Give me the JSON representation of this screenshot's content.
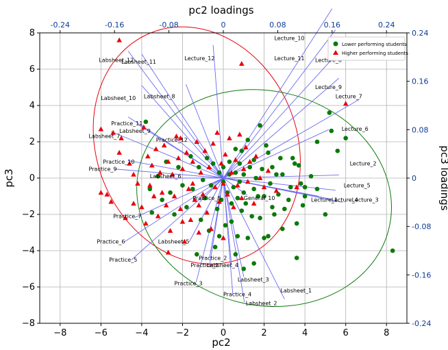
{
  "chart_data": {
    "type": "scatter",
    "title": "",
    "xlabel": "pc2",
    "ylabel": "pc3",
    "top_axis_label": "pc2 loadings",
    "right_axis_label": "pc3 loadings",
    "xlim": [
      -9,
      9
    ],
    "ylim": [
      -8,
      8
    ],
    "x_ticks": [
      "−8",
      "−6",
      "−4",
      "−2",
      "0",
      "2",
      "4",
      "6",
      "8"
    ],
    "y_ticks": [
      "−8",
      "−6",
      "−4",
      "−2",
      "0",
      "2",
      "4",
      "6",
      "8"
    ],
    "x_tick_values": [
      -8,
      -6,
      -4,
      -2,
      0,
      2,
      4,
      6,
      8
    ],
    "y_tick_values": [
      -8,
      -6,
      -4,
      -2,
      0,
      2,
      4,
      6,
      8
    ],
    "top_ticks": [
      "-0.24",
      "-0.16",
      "-0.08",
      "0",
      "0.08",
      "0.16",
      "0.24"
    ],
    "top_tick_values": [
      -0.24,
      -0.16,
      -0.08,
      0,
      0.08,
      0.16,
      0.24
    ],
    "right_ticks": [
      "0.24",
      "0.16",
      "0.08",
      "0",
      "-0.08",
      "-0.16",
      "-0.24"
    ],
    "right_tick_values": [
      0.24,
      0.16,
      0.08,
      0,
      -0.08,
      -0.16,
      -0.24
    ],
    "loading_scale_factor": 33.3333,
    "grid": true,
    "legend_position": "top-right",
    "colors": {
      "lower": "#0a7a0a",
      "higher": "#e8000b",
      "vectors": "#6a6af0",
      "loading_axis": "#0b3d91"
    },
    "series": [
      {
        "name": "Lower performing students",
        "marker": "circle",
        "points": [
          [
            8.3,
            -4.0
          ],
          [
            6.0,
            2.2
          ],
          [
            5.6,
            1.5
          ],
          [
            5.3,
            2.6
          ],
          [
            5.2,
            3.6
          ],
          [
            5.0,
            -2.0
          ],
          [
            4.6,
            2.0
          ],
          [
            4.3,
            0.1
          ],
          [
            4.0,
            -0.5
          ],
          [
            4.0,
            -1.0
          ],
          [
            3.9,
            -1.5
          ],
          [
            3.8,
            -0.3
          ],
          [
            3.6,
            -4.4
          ],
          [
            3.6,
            -2.5
          ],
          [
            3.5,
            0.8
          ],
          [
            3.7,
            0.7
          ],
          [
            3.3,
            -0.5
          ],
          [
            3.2,
            -1.2
          ],
          [
            3.0,
            -1.7
          ],
          [
            2.9,
            0.2
          ],
          [
            2.9,
            -2.8
          ],
          [
            2.8,
            1.1
          ],
          [
            2.7,
            -0.9
          ],
          [
            2.6,
            0.2
          ],
          [
            2.5,
            -2.0
          ],
          [
            2.4,
            -1.6
          ],
          [
            2.4,
            0.6
          ],
          [
            2.3,
            -0.3
          ],
          [
            2.2,
            -3.2
          ],
          [
            2.2,
            1.4
          ],
          [
            2.1,
            1.8
          ],
          [
            2.0,
            -1.0
          ],
          [
            2.0,
            -3.3
          ],
          [
            1.9,
            0.5
          ],
          [
            1.8,
            -2.2
          ],
          [
            1.8,
            2.9
          ],
          [
            1.7,
            -1.0
          ],
          [
            1.6,
            0.0
          ],
          [
            1.5,
            -0.6
          ],
          [
            1.5,
            1.0
          ],
          [
            1.4,
            -2.1
          ],
          [
            1.3,
            0.6
          ],
          [
            1.2,
            -3.3
          ],
          [
            1.2,
            2.1
          ],
          [
            1.1,
            -1.4
          ],
          [
            1.0,
            0.2
          ],
          [
            1.0,
            -0.8
          ],
          [
            0.9,
            1.5
          ],
          [
            0.9,
            -1.8
          ],
          [
            0.8,
            -0.2
          ],
          [
            0.8,
            0.8
          ],
          [
            0.7,
            -3.2
          ],
          [
            0.7,
            -1.1
          ],
          [
            0.6,
            0.3
          ],
          [
            0.6,
            1.6
          ],
          [
            0.5,
            -0.5
          ],
          [
            0.4,
            -2.4
          ],
          [
            0.4,
            -1.4
          ],
          [
            0.3,
            0.2
          ],
          [
            0.3,
            0.9
          ],
          [
            0.2,
            -0.8
          ],
          [
            0.1,
            -2.6
          ],
          [
            0.0,
            0.6
          ],
          [
            0.0,
            -0.2
          ],
          [
            -0.1,
            -1.2
          ],
          [
            -0.2,
            0.3
          ],
          [
            -0.3,
            -1.7
          ],
          [
            -0.4,
            -3.8
          ],
          [
            -0.5,
            0.8
          ],
          [
            -0.6,
            -0.4
          ],
          [
            -0.7,
            -2.9
          ],
          [
            -0.8,
            1.1
          ],
          [
            -0.9,
            -1.1
          ],
          [
            -1.0,
            -0.1
          ],
          [
            -1.1,
            -2.3
          ],
          [
            -1.2,
            0.6
          ],
          [
            -1.3,
            -4.2
          ],
          [
            -1.5,
            -0.6
          ],
          [
            -1.6,
            1.2
          ],
          [
            -1.8,
            -1.6
          ],
          [
            -2.0,
            -0.4
          ],
          [
            -2.2,
            0.6
          ],
          [
            -2.4,
            -2.0
          ],
          [
            -2.6,
            -0.8
          ],
          [
            -2.8,
            0.9
          ],
          [
            -3.0,
            -1.2
          ],
          [
            -3.2,
            0.1
          ],
          [
            -3.5,
            -1.9
          ],
          [
            -3.8,
            3.1
          ],
          [
            -3.6,
            -0.6
          ],
          [
            1.0,
            -5.0
          ],
          [
            0.6,
            -4.2
          ],
          [
            1.5,
            -4.7
          ],
          [
            -0.2,
            -3.2
          ],
          [
            4.6,
            -0.6
          ],
          [
            3.4,
            1.1
          ]
        ]
      },
      {
        "name": "Higher performing students",
        "marker": "triangle",
        "points": [
          [
            -5.1,
            7.6
          ],
          [
            0.9,
            6.3
          ],
          [
            6.0,
            4.1
          ],
          [
            -6.0,
            2.7
          ],
          [
            -5.4,
            2.5
          ],
          [
            -5.0,
            2.2
          ],
          [
            -5.1,
            1.4
          ],
          [
            -4.6,
            0.8
          ],
          [
            -4.4,
            0.2
          ],
          [
            -4.2,
            -0.3
          ],
          [
            -3.9,
            2.8
          ],
          [
            -3.7,
            1.2
          ],
          [
            -3.6,
            -0.4
          ],
          [
            -3.5,
            0.7
          ],
          [
            -3.4,
            -1.0
          ],
          [
            -3.3,
            1.6
          ],
          [
            -3.2,
            -2.1
          ],
          [
            -3.1,
            0.3
          ],
          [
            -3.0,
            -0.8
          ],
          [
            -2.9,
            1.8
          ],
          [
            -2.8,
            -1.5
          ],
          [
            -2.7,
            0.9
          ],
          [
            -2.6,
            -2.9
          ],
          [
            -2.5,
            0.2
          ],
          [
            -2.4,
            -1.0
          ],
          [
            -2.3,
            2.3
          ],
          [
            -2.2,
            1.1
          ],
          [
            -2.1,
            -1.7
          ],
          [
            -2.0,
            0.5
          ],
          [
            -1.9,
            -3.5
          ],
          [
            -1.8,
            1.4
          ],
          [
            -1.7,
            -0.6
          ],
          [
            -1.6,
            -2.3
          ],
          [
            -1.5,
            0.9
          ],
          [
            -1.4,
            -1.2
          ],
          [
            -1.3,
            2.0
          ],
          [
            -1.2,
            -3.0
          ],
          [
            -1.1,
            0.3
          ],
          [
            -1.0,
            -0.9
          ],
          [
            -0.9,
            1.5
          ],
          [
            -0.8,
            -1.9
          ],
          [
            -0.7,
            0.6
          ],
          [
            -0.6,
            -2.8
          ],
          [
            -0.5,
            1.9
          ],
          [
            -0.4,
            -0.5
          ],
          [
            -0.3,
            2.5
          ],
          [
            -0.2,
            -1.3
          ],
          [
            -0.1,
            0.8
          ],
          [
            0.0,
            -0.3
          ],
          [
            0.1,
            1.3
          ],
          [
            0.2,
            -0.9
          ],
          [
            0.3,
            2.2
          ],
          [
            0.4,
            0.3
          ],
          [
            0.5,
            -1.6
          ],
          [
            0.6,
            1.0
          ],
          [
            0.7,
            -0.4
          ],
          [
            0.8,
            2.4
          ],
          [
            0.9,
            -1.1
          ],
          [
            1.0,
            0.5
          ],
          [
            1.1,
            1.7
          ],
          [
            1.2,
            -0.2
          ],
          [
            1.3,
            0.9
          ],
          [
            1.5,
            -1.4
          ],
          [
            1.6,
            1.2
          ],
          [
            1.8,
            0.0
          ],
          [
            2.0,
            -0.5
          ],
          [
            2.2,
            0.4
          ],
          [
            2.6,
            -0.7
          ],
          [
            3.6,
            -0.5
          ],
          [
            -6.0,
            -0.8
          ],
          [
            -5.7,
            -0.9
          ],
          [
            -5.5,
            -1.3
          ],
          [
            -4.8,
            -2.2
          ],
          [
            -4.4,
            -1.4
          ],
          [
            -4.0,
            -1.6
          ],
          [
            -3.8,
            -2.5
          ],
          [
            -2.7,
            -4.1
          ],
          [
            -2.0,
            -2.4
          ],
          [
            -1.2,
            -1.5
          ],
          [
            0.0,
            -3.3
          ],
          [
            -1.5,
            -0.3
          ],
          [
            -2.1,
            2.2
          ]
        ]
      }
    ],
    "loadings": [
      {
        "name": "Lecture_10",
        "pc2": 0.16,
        "pc3": 0.28
      },
      {
        "name": "Lecture_11",
        "pc2": 0.165,
        "pc3": 0.245
      },
      {
        "name": "Lecture_8",
        "pc2": 0.175,
        "pc3": 0.215
      },
      {
        "name": "Lecture_9",
        "pc2": 0.17,
        "pc3": 0.165
      },
      {
        "name": "Lecture_7",
        "pc2": 0.2,
        "pc3": 0.13
      },
      {
        "name": "Lecture_6",
        "pc2": 0.155,
        "pc3": 0.08
      },
      {
        "name": "Lecture_2",
        "pc2": 0.17,
        "pc3": 0.005
      },
      {
        "name": "Lecture_5",
        "pc2": 0.165,
        "pc3": -0.02
      },
      {
        "name": "Lecture_3",
        "pc2": 0.175,
        "pc3": -0.04
      },
      {
        "name": "Lecture_4",
        "pc2": 0.16,
        "pc3": -0.035
      },
      {
        "name": "Lecture_1",
        "pc2": 0.14,
        "pc3": -0.03
      },
      {
        "name": "General_10",
        "pc2": 0.035,
        "pc3": -0.028
      },
      {
        "name": "Lecture_12",
        "pc2": -0.015,
        "pc3": 0.22
      },
      {
        "name": "Labsheet_12",
        "pc2": -0.14,
        "pc3": 0.21
      },
      {
        "name": "Labsheet_11",
        "pc2": -0.12,
        "pc3": 0.205
      },
      {
        "name": "Labsheet_8",
        "pc2": -0.055,
        "pc3": 0.155
      },
      {
        "name": "Labsheet_10",
        "pc2": -0.12,
        "pc3": 0.153
      },
      {
        "name": "Practice_11",
        "pc2": -0.14,
        "pc3": 0.101
      },
      {
        "name": "Labsheet_9",
        "pc2": -0.125,
        "pc3": 0.088
      },
      {
        "name": "Practice_12",
        "pc2": -0.07,
        "pc3": 0.066
      },
      {
        "name": "Labsheet_7",
        "pc2": -0.165,
        "pc3": 0.077
      },
      {
        "name": "Practice_10",
        "pc2": -0.14,
        "pc3": 0.029
      },
      {
        "name": "Practice_9",
        "pc2": -0.16,
        "pc3": 0.015
      },
      {
        "name": "Labsheet_6",
        "pc2": -0.085,
        "pc3": -0.0
      },
      {
        "name": "Labsheet_5",
        "pc2": -0.02,
        "pc3": -0.012
      },
      {
        "name": "Practice_8",
        "pc2": -0.035,
        "pc3": -0.04
      },
      {
        "name": "Practice_7",
        "pc2": -0.13,
        "pc3": -0.065
      },
      {
        "name": "Practice_6",
        "pc2": -0.145,
        "pc3": -0.105
      },
      {
        "name": "Practice_5",
        "pc2": -0.135,
        "pc3": -0.135
      },
      {
        "name": "Labsheet_5b",
        "pc2": -0.05,
        "pc3": -0.105
      },
      {
        "name": "Practice_2",
        "pc2": -0.02,
        "pc3": -0.13
      },
      {
        "name": "Practice_1",
        "pc2": -0.02,
        "pc3": -0.143
      },
      {
        "name": "Labsheet_4",
        "pc2": 0.012,
        "pc3": -0.143
      },
      {
        "name": "Practice_3",
        "pc2": -0.04,
        "pc3": -0.172
      },
      {
        "name": "Labsheet_3",
        "pc2": 0.03,
        "pc3": -0.163
      },
      {
        "name": "Practice_4",
        "pc2": 0.014,
        "pc3": -0.192
      },
      {
        "name": "Labsheet_2",
        "pc2": 0.031,
        "pc3": -0.205
      },
      {
        "name": "Labsheet_1",
        "pc2": 0.09,
        "pc3": -0.2
      }
    ],
    "loading_labels": [
      {
        "text": "Lecture_10",
        "x": 2.5,
        "y": 7.6
      },
      {
        "text": "Lecture_11",
        "x": 2.5,
        "y": 6.5
      },
      {
        "text": "Lecture_8",
        "x": 4.5,
        "y": 6.4
      },
      {
        "text": "Lecture_9",
        "x": 4.5,
        "y": 4.9
      },
      {
        "text": "Lecture_7",
        "x": 5.5,
        "y": 4.4
      },
      {
        "text": "Lecture_6",
        "x": 5.8,
        "y": 2.6
      },
      {
        "text": "Lecture_2",
        "x": 6.2,
        "y": 0.7
      },
      {
        "text": "Lecture_5",
        "x": 5.9,
        "y": -0.5
      },
      {
        "text": "Lecture_3",
        "x": 6.3,
        "y": -1.3
      },
      {
        "text": "Lecture_4",
        "x": 5.3,
        "y": -1.3
      },
      {
        "text": "Lecture_1",
        "x": 4.3,
        "y": -1.3
      },
      {
        "text": "General_10",
        "x": 1.0,
        "y": -1.2
      },
      {
        "text": "Lecture_12",
        "x": -1.9,
        "y": 6.5
      },
      {
        "text": "Labsheet_12",
        "x": -6.1,
        "y": 6.4
      },
      {
        "text": "Labsheet_11",
        "x": -5.0,
        "y": 6.3
      },
      {
        "text": "Labsheet_8",
        "x": -3.9,
        "y": 4.4
      },
      {
        "text": "Labsheet_10",
        "x": -6.0,
        "y": 4.3
      },
      {
        "text": "Practice_11",
        "x": -5.5,
        "y": 2.9
      },
      {
        "text": "Labsheet_9",
        "x": -5.1,
        "y": 2.5
      },
      {
        "text": "Practice_12",
        "x": -3.3,
        "y": 2.0
      },
      {
        "text": "Labsheet_7",
        "x": -6.6,
        "y": 2.2
      },
      {
        "text": "Practice_10",
        "x": -5.9,
        "y": 0.8
      },
      {
        "text": "Practice_9",
        "x": -6.6,
        "y": 0.4
      },
      {
        "text": "Labsheet_6",
        "x": -3.6,
        "y": 0.0
      },
      {
        "text": "Practice_8",
        "x": -1.5,
        "y": -1.2
      },
      {
        "text": "Practice_7",
        "x": -5.4,
        "y": -2.2
      },
      {
        "text": "Practice_6",
        "x": -6.2,
        "y": -3.6
      },
      {
        "text": "Practice_5",
        "x": -5.6,
        "y": -4.6
      },
      {
        "text": "Labsheet_5",
        "x": -3.2,
        "y": -3.6
      },
      {
        "text": "Practice_2",
        "x": -1.2,
        "y": -4.5
      },
      {
        "text": "Practice_1",
        "x": -1.6,
        "y": -4.9
      },
      {
        "text": "Labsheet_4",
        "x": -0.8,
        "y": -4.9
      },
      {
        "text": "Practice_3",
        "x": -2.4,
        "y": -5.9
      },
      {
        "text": "Labsheet_3",
        "x": 0.7,
        "y": -5.7
      },
      {
        "text": "Practice_4",
        "x": 0.0,
        "y": -6.5
      },
      {
        "text": "Labsheet_2",
        "x": 1.1,
        "y": -7.0
      },
      {
        "text": "Labsheet_1",
        "x": 2.8,
        "y": -6.3
      }
    ],
    "ellipses": [
      {
        "name": "Higher performing students",
        "cx": -1.3,
        "cy": 1.8,
        "rx": 4.9,
        "ry": 6.7,
        "angle_deg": -23
      },
      {
        "name": "Lower performing students",
        "cx": 2.0,
        "cy": -1.1,
        "rx": 6.3,
        "ry": 5.9,
        "angle_deg": 14
      }
    ]
  }
}
